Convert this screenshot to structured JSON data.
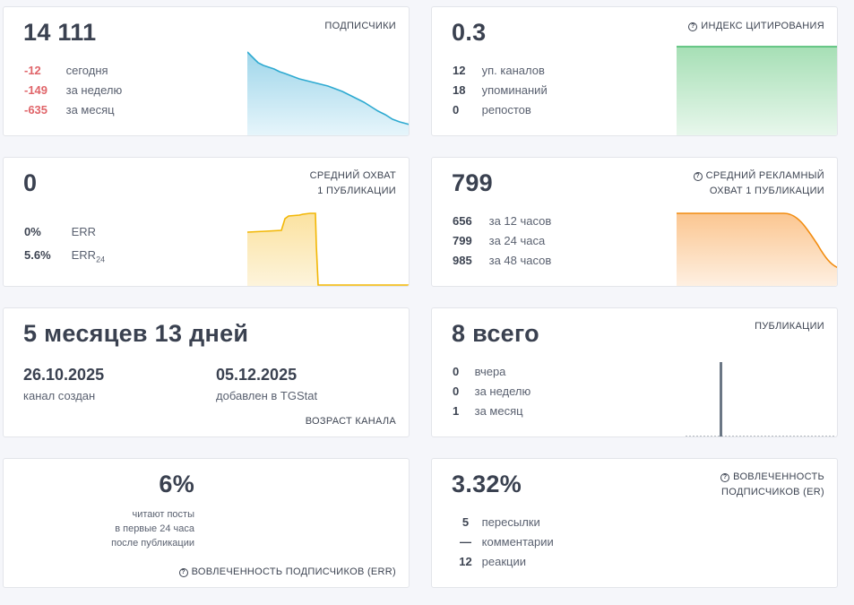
{
  "subscribers": {
    "value": "14 111",
    "label": "ПОДПИСЧИКИ",
    "rows": [
      {
        "num": "-12",
        "text": "сегодня"
      },
      {
        "num": "-149",
        "text": "за неделю"
      },
      {
        "num": "-635",
        "text": "за месяц"
      }
    ],
    "color": "#2eaad1"
  },
  "citation": {
    "value": "0.3",
    "label": "ИНДЕКС ЦИТИРОВАНИЯ",
    "icon": "info-icon",
    "rows": [
      {
        "num": "12",
        "text": "уп. каналов"
      },
      {
        "num": "18",
        "text": "упоминаний"
      },
      {
        "num": "0",
        "text": "репостов"
      }
    ],
    "color": "#43b96a"
  },
  "reach": {
    "value": "0",
    "label_line1": "СРЕДНИЙ ОХВАТ",
    "label_line2": "1 ПУБЛИКАЦИИ",
    "rows": [
      {
        "num": "0%",
        "text": "ERR"
      },
      {
        "num": "5.6%",
        "text": "ERR",
        "sub": "24"
      }
    ],
    "color": "#f2b705"
  },
  "ad_reach": {
    "value": "799",
    "label_line1": "СРЕДНИЙ РЕКЛАМНЫЙ",
    "label_line2": "ОХВАТ 1 ПУБЛИКАЦИИ",
    "icon": "info-icon",
    "rows": [
      {
        "num": "656",
        "text": "за 12 часов"
      },
      {
        "num": "799",
        "text": "за 24 часа"
      },
      {
        "num": "985",
        "text": "за 48 часов"
      }
    ],
    "color": "#f28c0f"
  },
  "age": {
    "value": "5 месяцев 13 дней",
    "created_date": "26.10.2025",
    "created_label": "канал создан",
    "added_date": "05.12.2025",
    "added_label": "добавлен в TGStat",
    "label": "ВОЗРАСТ КАНАЛА"
  },
  "publications": {
    "value": "8 всего",
    "label": "ПУБЛИКАЦИИ",
    "rows": [
      {
        "num": "0",
        "text": "вчера"
      },
      {
        "num": "0",
        "text": "за неделю"
      },
      {
        "num": "1",
        "text": "за месяц"
      }
    ],
    "color": "#6b7785"
  },
  "err": {
    "value": "6%",
    "line1": "читают посты",
    "line2": "в первые 24 часа",
    "line3": "после публикации",
    "label": "ВОВЛЕЧЕННОСТЬ ПОДПИСЧИКОВ (ERR)",
    "icon": "info-icon"
  },
  "er": {
    "value": "3.32%",
    "label_line1": "ВОВЛЕЧЕННОСТЬ",
    "label_line2": "ПОДПИСЧИКОВ (ER)",
    "icon": "info-icon",
    "rows": [
      {
        "num": "5",
        "text": "пересылки"
      },
      {
        "num": "—",
        "text": "комментарии"
      },
      {
        "num": "12",
        "text": "реакции"
      }
    ]
  }
}
